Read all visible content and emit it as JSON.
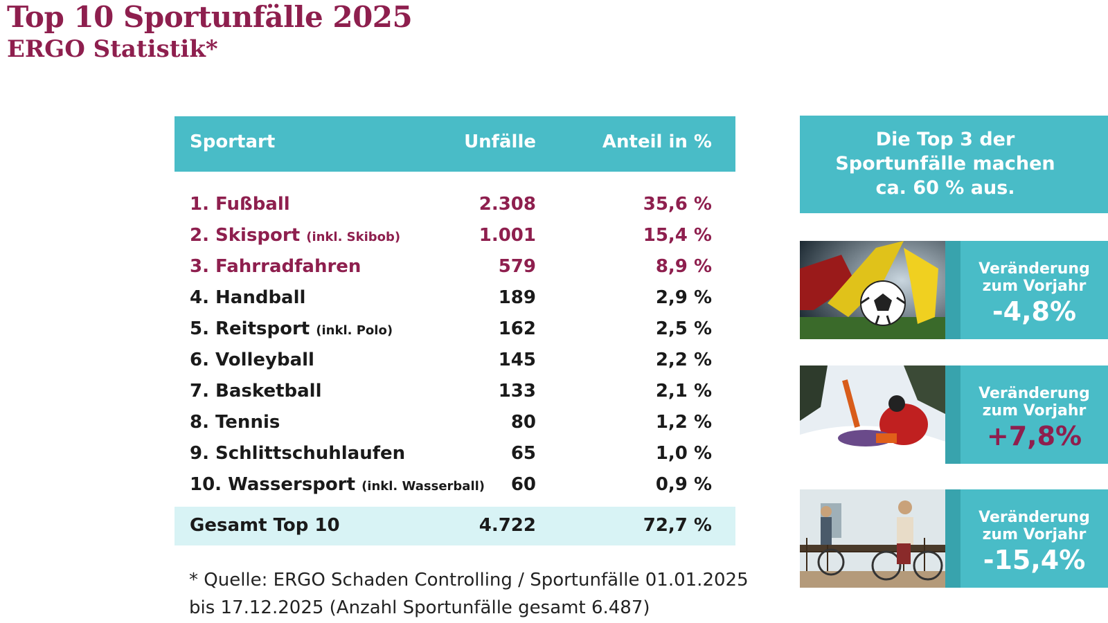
{
  "title": "Top 10 Sportunfälle 2025",
  "subtitle": "ERGO Statistik*",
  "chart_data": {
    "type": "table",
    "columns": [
      "Sportart",
      "Unfälle",
      "Anteil in %"
    ],
    "rows": [
      {
        "sport": "1. Fußball",
        "note": "",
        "unfaelle": "2.308",
        "anteil": "35,6 %",
        "top": true
      },
      {
        "sport": "2. Skisport",
        "note": "(inkl. Skibob)",
        "unfaelle": "1.001",
        "anteil": "15,4 %",
        "top": true
      },
      {
        "sport": "3. Fahrradfahren",
        "note": "",
        "unfaelle": "579",
        "anteil": "8,9 %",
        "top": true
      },
      {
        "sport": "4. Handball",
        "note": "",
        "unfaelle": "189",
        "anteil": "2,9 %",
        "top": false
      },
      {
        "sport": "5. Reitsport",
        "note": "(inkl. Polo)",
        "unfaelle": "162",
        "anteil": "2,5 %",
        "top": false
      },
      {
        "sport": "6. Volleyball",
        "note": "",
        "unfaelle": "145",
        "anteil": "2,2 %",
        "top": false
      },
      {
        "sport": "7. Basketball",
        "note": "",
        "unfaelle": "133",
        "anteil": "2,1 %",
        "top": false
      },
      {
        "sport": "8. Tennis",
        "note": "",
        "unfaelle": "80",
        "anteil": "1,2 %",
        "top": false
      },
      {
        "sport": "9. Schlittschuhlaufen",
        "note": "",
        "unfaelle": "65",
        "anteil": "1,0 %",
        "top": false
      },
      {
        "sport": "10. Wassersport",
        "note": "(inkl. Wasserball)",
        "unfaelle": "60",
        "anteil": "0,9 %",
        "top": false
      }
    ],
    "total": {
      "label": "Gesamt Top 10",
      "unfaelle": "4.722",
      "anteil": "72,7 %"
    }
  },
  "source": {
    "line1": "* Quelle: ERGO Schaden Controlling / Sportunfälle 01.01.2025",
    "line2": "bis 17.12.2025 (Anzahl Sportunfälle gesamt 6.487)"
  },
  "callout": {
    "line1": "Die Top 3 der",
    "line2": "Sportunfälle machen",
    "line3": "ca. 60 % aus."
  },
  "changes": [
    {
      "label1": "Veränderung",
      "label2": "zum Vorjahr",
      "value": "-4,8%",
      "direction": "negative",
      "image": "fussball-photo"
    },
    {
      "label1": "Veränderung",
      "label2": "zum Vorjahr",
      "value": "+7,8%",
      "direction": "positive",
      "image": "skisport-photo"
    },
    {
      "label1": "Veränderung",
      "label2": "zum Vorjahr",
      "value": "-15,4%",
      "direction": "negative",
      "image": "fahrrad-photo"
    }
  ],
  "colors": {
    "brand": "#8e1f4e",
    "teal": "#49bcc7",
    "teal_dark": "#38a3ad",
    "total_bg": "#d8f3f5"
  }
}
